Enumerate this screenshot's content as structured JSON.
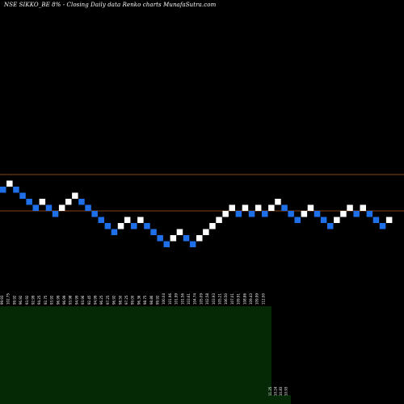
{
  "chart_data": {
    "type": "renko",
    "title": "NSE SIKKO_BE 8% -  Closing Daily data  Renko  charts MunafaSutra.com",
    "colors": {
      "background": "#000000",
      "up_brick": "#ffffff",
      "down_brick": "#1f6fe8",
      "reference_line": "#b25a1a",
      "volume_panel": "#052805",
      "text": "#ffffff"
    },
    "reference_lines": [
      202.5,
      184.5
    ],
    "bricks": [
      {
        "dir": "down",
        "level": 196.5
      },
      {
        "dir": "up",
        "level": 199.5
      },
      {
        "dir": "down",
        "level": 196.5
      },
      {
        "dir": "down",
        "level": 193.5
      },
      {
        "dir": "down",
        "level": 190.5
      },
      {
        "dir": "down",
        "level": 187.5
      },
      {
        "dir": "up",
        "level": 190.5
      },
      {
        "dir": "down",
        "level": 187.5
      },
      {
        "dir": "down",
        "level": 184.5
      },
      {
        "dir": "up",
        "level": 187.5
      },
      {
        "dir": "up",
        "level": 190.5
      },
      {
        "dir": "up",
        "level": 193.5
      },
      {
        "dir": "down",
        "level": 190.5
      },
      {
        "dir": "down",
        "level": 187.5
      },
      {
        "dir": "down",
        "level": 184.5
      },
      {
        "dir": "down",
        "level": 181.5
      },
      {
        "dir": "down",
        "level": 178.5
      },
      {
        "dir": "down",
        "level": 175.5
      },
      {
        "dir": "up",
        "level": 178.5
      },
      {
        "dir": "up",
        "level": 181.5
      },
      {
        "dir": "down",
        "level": 178.5
      },
      {
        "dir": "up",
        "level": 181.5
      },
      {
        "dir": "down",
        "level": 178.5
      },
      {
        "dir": "down",
        "level": 175.5
      },
      {
        "dir": "down",
        "level": 172.5
      },
      {
        "dir": "down",
        "level": 169.5
      },
      {
        "dir": "up",
        "level": 172.5
      },
      {
        "dir": "up",
        "level": 175.5
      },
      {
        "dir": "down",
        "level": 172.5
      },
      {
        "dir": "down",
        "level": 169.5
      },
      {
        "dir": "up",
        "level": 172.5
      },
      {
        "dir": "up",
        "level": 175.5
      },
      {
        "dir": "up",
        "level": 178.5
      },
      {
        "dir": "up",
        "level": 181.5
      },
      {
        "dir": "up",
        "level": 184.5
      },
      {
        "dir": "up",
        "level": 187.5
      },
      {
        "dir": "down",
        "level": 184.5
      },
      {
        "dir": "up",
        "level": 187.5
      },
      {
        "dir": "down",
        "level": 184.5
      },
      {
        "dir": "up",
        "level": 187.5
      },
      {
        "dir": "down",
        "level": 184.5
      },
      {
        "dir": "up",
        "level": 187.5
      },
      {
        "dir": "up",
        "level": 190.5
      },
      {
        "dir": "down",
        "level": 187.5
      },
      {
        "dir": "down",
        "level": 184.5
      },
      {
        "dir": "down",
        "level": 181.5
      },
      {
        "dir": "up",
        "level": 184.5
      },
      {
        "dir": "up",
        "level": 187.5
      },
      {
        "dir": "down",
        "level": 184.5
      },
      {
        "dir": "down",
        "level": 181.5
      },
      {
        "dir": "down",
        "level": 178.5
      },
      {
        "dir": "up",
        "level": 181.5
      },
      {
        "dir": "up",
        "level": 184.5
      },
      {
        "dir": "up",
        "level": 187.5
      },
      {
        "dir": "down",
        "level": 184.5
      },
      {
        "dir": "up",
        "level": 187.5
      },
      {
        "dir": "down",
        "level": 184.5
      },
      {
        "dir": "down",
        "level": 181.5
      },
      {
        "dir": "down",
        "level": 178.5
      },
      {
        "dir": "up",
        "level": 181.5
      }
    ],
    "price_labels": [
      "99.93",
      "102.75",
      "99.92",
      "96.92",
      "93.92",
      "92.99",
      "94.25",
      "92.75",
      "93.92",
      "96.99",
      "96.99",
      "93.98",
      "94.99",
      "93.96",
      "92.45",
      "94.99",
      "96.25",
      "97.25",
      "96.92",
      "98.50",
      "97.25",
      "99.00",
      "96.36",
      "98.75",
      "98.86",
      "99.92",
      "100.04",
      "101.96",
      "101.99",
      "101.56",
      "103.61",
      "104.74",
      "105.09",
      "102.58",
      "103.93",
      "105.21",
      "106.50",
      "107.01",
      "109.91",
      "108.86",
      "109.43",
      "109.99",
      "112.00"
    ],
    "volume_labels": [
      "11.25",
      "10.24",
      "10.83",
      "10.93"
    ]
  }
}
